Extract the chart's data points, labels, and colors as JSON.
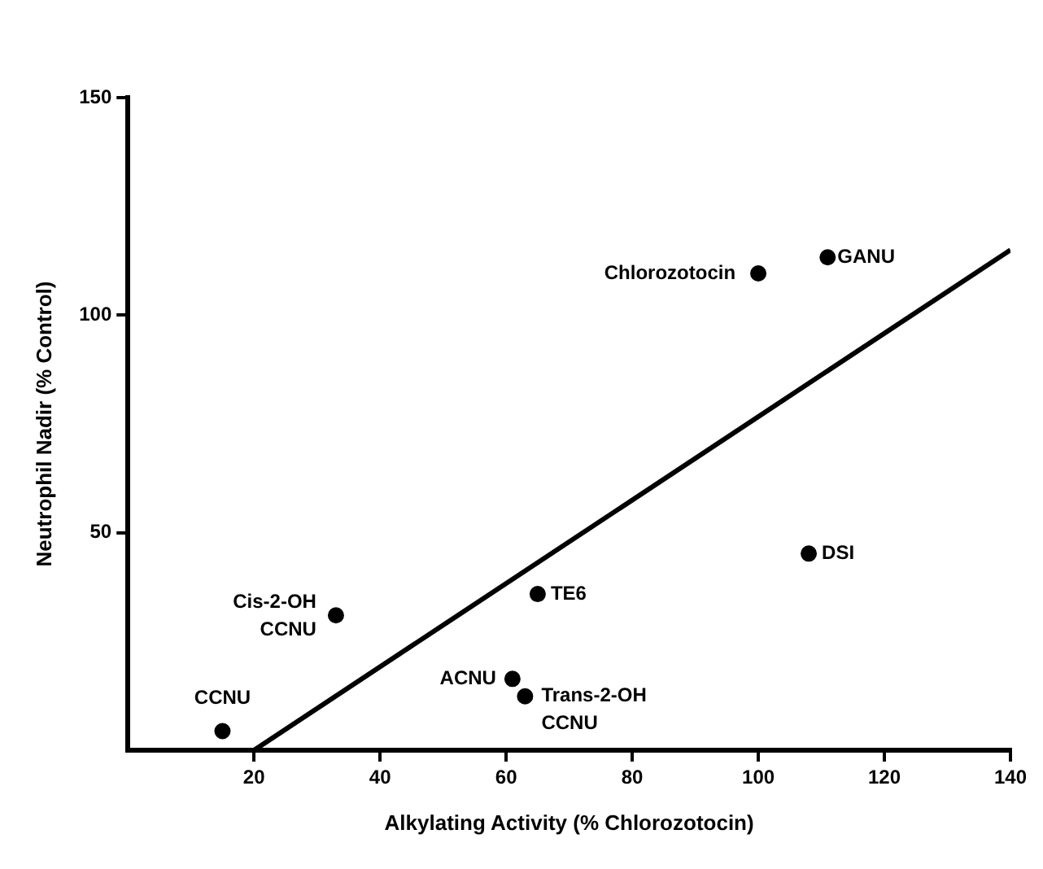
{
  "chart_data": {
    "type": "scatter",
    "xlabel": "Alkylating Activity (% Chlorozotocin)",
    "ylabel": "Neutrophil Nadir (% Control)",
    "xlim": [
      0,
      140
    ],
    "xticks": [
      20,
      40,
      60,
      80,
      100,
      120,
      140
    ],
    "ylim": [
      0,
      150
    ],
    "yticks": [
      50,
      100,
      150
    ],
    "grid": false,
    "legend": false,
    "marker": "circle",
    "series": [
      {
        "color": "#000000",
        "x": [
          15,
          33,
          61,
          63,
          65,
          100,
          111,
          108
        ],
        "values": [
          4.4,
          31,
          16.4,
          12.4,
          35.9,
          109.6,
          113.3,
          45.2
        ]
      },
      {
        "type": "line",
        "color": "#000000",
        "x": [
          20,
          140
        ],
        "values": [
          0,
          115
        ],
        "line_style": "solid",
        "marker": "none"
      }
    ],
    "annotations": [
      {
        "text": "CCNU",
        "x": 15,
        "y": 4.4
      },
      {
        "text": "Cis-2-OH CCNU",
        "x": 33,
        "y": 31
      },
      {
        "text": "ACNU",
        "x": 61,
        "y": 16.4
      },
      {
        "text": "Trans-2-OH CCNU",
        "x": 63,
        "y": 12.4
      },
      {
        "text": "TE6",
        "x": 65,
        "y": 35.9
      },
      {
        "text": "Chlorozotocin",
        "x": 100,
        "y": 109.6
      },
      {
        "text": "GANU",
        "x": 111,
        "y": 113.3
      },
      {
        "text": "DSI",
        "x": 108,
        "y": 45.2
      }
    ]
  }
}
